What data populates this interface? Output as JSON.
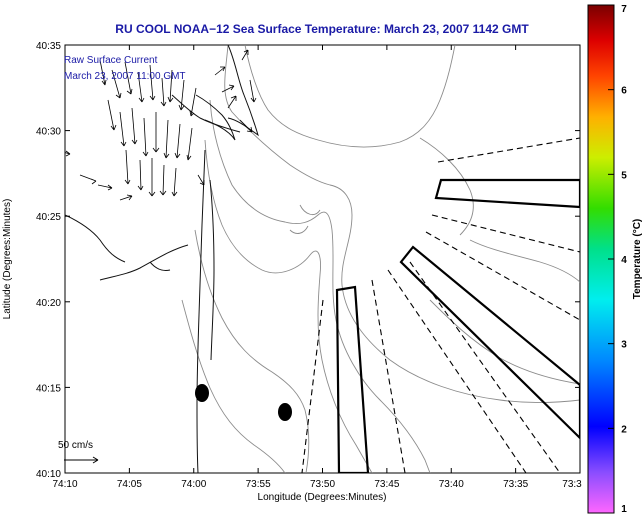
{
  "title": "RU COOL  NOAA−12  Sea Surface Temperature:  March 23, 2007 1142 GMT",
  "overlay": {
    "line1": "Raw Surface Current",
    "line2": "March 23, 2007 11:00 GMT"
  },
  "scale_arrow_label": "50 cm/s",
  "axes": {
    "xlabel": "Longitude (Degrees:Minutes)",
    "ylabel": "Latitude (Degrees:Minutes)",
    "x_ticks": [
      "74:10",
      "74:05",
      "74:00",
      "73:55",
      "73:50",
      "73:45",
      "73:40",
      "73:35",
      "73:3"
    ],
    "y_ticks": [
      "40:35",
      "40:30",
      "40:25",
      "40:20",
      "40:15",
      "40:10"
    ]
  },
  "colorbar": {
    "label": "Temperature (°C)",
    "ticks": [
      "7",
      "6",
      "5",
      "4",
      "3",
      "2",
      "1"
    ],
    "min": 1,
    "max": 7
  },
  "colors": {
    "title": "#1a1aa6",
    "bathymetry": "#8c8c8c",
    "vectors": "#000000"
  }
}
